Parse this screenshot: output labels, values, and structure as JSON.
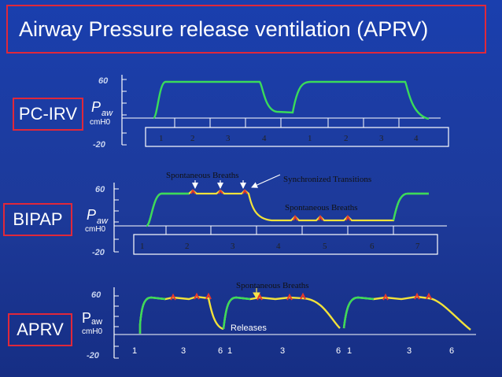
{
  "title": "Airway Pressure release ventilation (APRV)",
  "colors": {
    "background": "#1d3a9a",
    "border_red": "#e0283a",
    "waveform_green": "#3adb5a",
    "waveform_yellow": "#f2e23a",
    "spike_red": "#e8382a",
    "arrow_yellow": "#f7e24a"
  },
  "panels": [
    {
      "mode": "PC-IRV",
      "y_top": "60",
      "y_bottom": "-20",
      "p_label": "P",
      "p_sub": "aw",
      "unit": "cmH0",
      "ticks": [
        "1",
        "2",
        "3",
        "4",
        "1",
        "2",
        "3",
        "4"
      ]
    },
    {
      "mode": "BIPAP",
      "y_top": "60",
      "y_bottom": "-20",
      "p_label": "P",
      "p_sub": "aw",
      "unit": "cmH0",
      "ticks": [
        "1",
        "2",
        "3",
        "4",
        "5",
        "6",
        "7"
      ],
      "annotations": {
        "spontaneous_top": "Spontaneous Breaths",
        "synchronized": "Synchronized Transitions",
        "spontaneous_bottom": "Spontaneous Breaths"
      }
    },
    {
      "mode": "APRV",
      "y_top": "60",
      "y_bottom": "-20",
      "p_label": "P",
      "p_sub": "aw",
      "unit": "cmH0",
      "ticks": [
        "1",
        "3",
        "6",
        "1",
        "3",
        "6",
        "1",
        "3",
        "6"
      ],
      "annotations": {
        "spontaneous": "Spontaneous Breaths",
        "releases": "Releases"
      }
    }
  ]
}
